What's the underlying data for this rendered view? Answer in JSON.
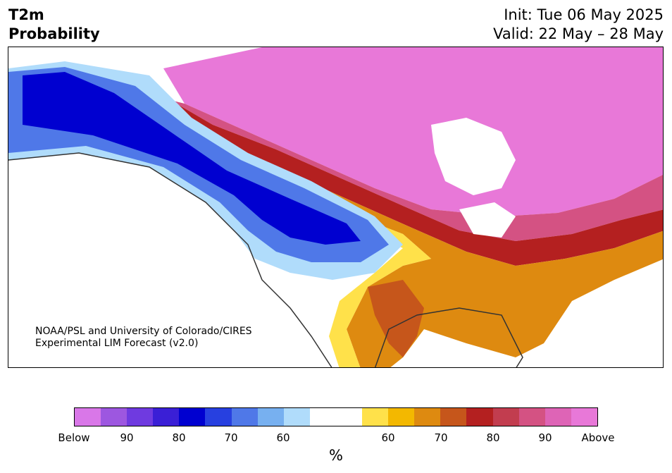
{
  "title": {
    "line1": "T2m",
    "line2": "Probability"
  },
  "run": {
    "init": "Init: Tue 06 May 2025",
    "valid": "Valid: 22 May – 28 May"
  },
  "credit": {
    "line1": "NOAA/PSL and University of Colorado/CIRES",
    "line2": "Experimental LIM Forecast (v2.0)"
  },
  "colorbar": {
    "colors": [
      "#d977e8",
      "#9d57e0",
      "#6f3ae0",
      "#3a1fd6",
      "#0000d0",
      "#2740e0",
      "#4f78e8",
      "#77b0f0",
      "#b0dcfb",
      "#ffffff",
      "#ffffff",
      "#ffe14a",
      "#f3b800",
      "#de8a10",
      "#c6561b",
      "#b42020",
      "#c23d4f",
      "#d45283",
      "#de64b6",
      "#e878d8"
    ],
    "tick_labels": [
      "Below",
      "90",
      "80",
      "70",
      "60",
      "60",
      "70",
      "80",
      "90",
      "Above"
    ],
    "unit": "%"
  },
  "legend_colors": {
    "below_strong": "#0000d0",
    "above_strong": "#e878d8",
    "neutral": "#ffffff"
  }
}
